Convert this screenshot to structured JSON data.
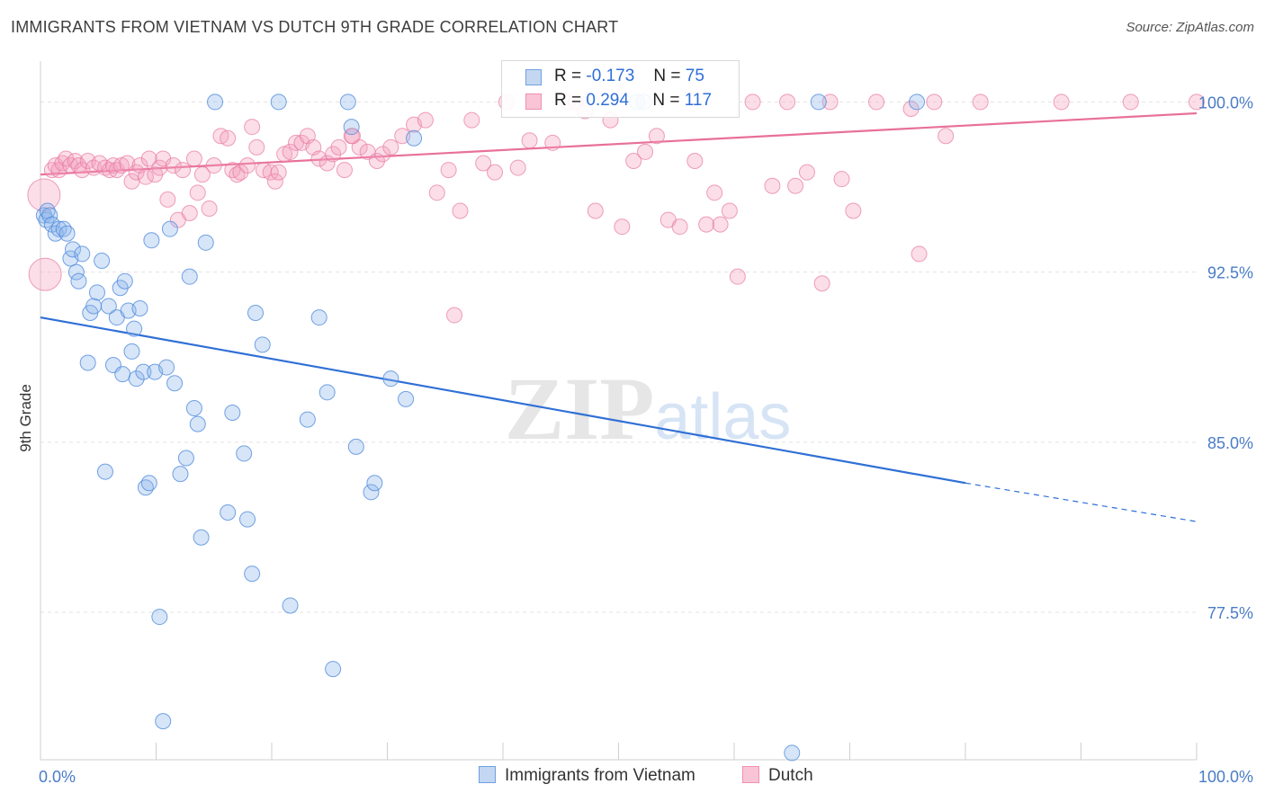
{
  "title": "IMMIGRANTS FROM VIETNAM VS DUTCH 9TH GRADE CORRELATION CHART",
  "source": "Source: ZipAtlas.com",
  "watermark": "ZIPatlas",
  "legend_stats": {
    "series1": {
      "r_label": "R =",
      "r_value": "-0.173",
      "n_label": "N =",
      "n_value": "75"
    },
    "series2": {
      "r_label": "R =",
      "r_value": "0.294",
      "n_label": "N =",
      "n_value": "117"
    }
  },
  "legend_bottom": {
    "series1": "Immigrants from Vietnam",
    "series2": "Dutch"
  },
  "chart_data": {
    "type": "scatter",
    "title": "IMMIGRANTS FROM VIETNAM VS DUTCH 9TH GRADE CORRELATION CHART",
    "xlabel": "",
    "ylabel": "9th Grade",
    "xlim": [
      0,
      100
    ],
    "ylim": [
      71.0,
      101.8
    ],
    "x_tick_labels": [
      "0.0%",
      "100.0%"
    ],
    "y_ticks": [
      100.0,
      92.5,
      85.0,
      77.5
    ],
    "y_tick_labels": [
      "100.0%",
      "92.5%",
      "85.0%",
      "77.5%"
    ],
    "grid": true,
    "legend_position": "top-center",
    "colors": {
      "series1": "#6fa0e0",
      "series2": "#f08fb0",
      "line1": "#2f6fd6",
      "line2": "#e8709a",
      "grid": "#e3e3e3"
    },
    "series": [
      {
        "name": "Immigrants from Vietnam",
        "trend": {
          "x0": 0,
          "y0": 90.5,
          "x1": 80,
          "y1": 83.2,
          "dashed_to_x": 100,
          "dashed_to_y": 81.5
        },
        "points": [
          [
            0.3,
            95.0
          ],
          [
            0.5,
            94.8
          ],
          [
            0.6,
            95.2
          ],
          [
            0.8,
            95.0
          ],
          [
            1.0,
            94.6
          ],
          [
            1.3,
            94.2
          ],
          [
            1.6,
            94.4
          ],
          [
            2.0,
            94.4
          ],
          [
            2.3,
            94.2
          ],
          [
            2.6,
            93.1
          ],
          [
            2.8,
            93.5
          ],
          [
            3.1,
            92.5
          ],
          [
            3.3,
            92.1
          ],
          [
            3.6,
            93.3
          ],
          [
            4.1,
            88.5
          ],
          [
            4.3,
            90.7
          ],
          [
            4.6,
            91.0
          ],
          [
            4.9,
            91.6
          ],
          [
            5.3,
            93.0
          ],
          [
            5.6,
            83.7
          ],
          [
            5.9,
            91.0
          ],
          [
            6.3,
            88.4
          ],
          [
            6.6,
            90.5
          ],
          [
            6.9,
            91.8
          ],
          [
            7.1,
            88.0
          ],
          [
            7.3,
            92.1
          ],
          [
            7.6,
            90.8
          ],
          [
            7.9,
            89.0
          ],
          [
            8.1,
            90.0
          ],
          [
            8.3,
            87.8
          ],
          [
            8.6,
            90.9
          ],
          [
            8.9,
            88.1
          ],
          [
            9.1,
            83.0
          ],
          [
            9.4,
            83.2
          ],
          [
            9.6,
            93.9
          ],
          [
            9.9,
            88.1
          ],
          [
            10.3,
            77.3
          ],
          [
            10.6,
            72.7
          ],
          [
            10.9,
            88.3
          ],
          [
            11.2,
            94.4
          ],
          [
            11.6,
            87.6
          ],
          [
            12.1,
            83.6
          ],
          [
            12.6,
            84.3
          ],
          [
            12.9,
            92.3
          ],
          [
            13.3,
            86.5
          ],
          [
            13.6,
            85.8
          ],
          [
            13.9,
            80.8
          ],
          [
            14.3,
            93.8
          ],
          [
            15.1,
            100.0
          ],
          [
            16.2,
            81.9
          ],
          [
            16.6,
            86.3
          ],
          [
            17.6,
            84.5
          ],
          [
            17.9,
            81.6
          ],
          [
            18.3,
            79.2
          ],
          [
            18.6,
            90.7
          ],
          [
            19.2,
            89.3
          ],
          [
            20.6,
            100.0
          ],
          [
            21.6,
            77.8
          ],
          [
            23.1,
            86.0
          ],
          [
            24.1,
            90.5
          ],
          [
            24.8,
            87.2
          ],
          [
            25.3,
            75.0
          ],
          [
            26.6,
            100.0
          ],
          [
            26.9,
            98.9
          ],
          [
            27.3,
            84.8
          ],
          [
            28.6,
            82.8
          ],
          [
            28.9,
            83.2
          ],
          [
            30.3,
            87.8
          ],
          [
            31.6,
            86.9
          ],
          [
            32.3,
            98.4
          ],
          [
            51.6,
            100.0
          ],
          [
            52.2,
            100.0
          ],
          [
            65.0,
            71.3
          ],
          [
            67.3,
            100.0
          ],
          [
            75.8,
            100.0
          ]
        ]
      },
      {
        "name": "Dutch",
        "trend": {
          "x0": 0,
          "y0": 96.8,
          "x1": 100,
          "y1": 99.5
        },
        "points": [
          [
            0.3,
            95.9
          ],
          [
            0.4,
            92.4
          ],
          [
            1.0,
            97.0
          ],
          [
            1.3,
            97.2
          ],
          [
            1.6,
            97.0
          ],
          [
            1.9,
            97.3
          ],
          [
            2.2,
            97.5
          ],
          [
            2.6,
            97.2
          ],
          [
            3.0,
            97.4
          ],
          [
            3.3,
            97.2
          ],
          [
            3.6,
            97.0
          ],
          [
            4.1,
            97.4
          ],
          [
            4.6,
            97.1
          ],
          [
            5.1,
            97.3
          ],
          [
            5.6,
            97.1
          ],
          [
            6.0,
            97.0
          ],
          [
            6.3,
            97.2
          ],
          [
            6.6,
            97.0
          ],
          [
            7.0,
            97.2
          ],
          [
            7.5,
            97.3
          ],
          [
            7.9,
            96.5
          ],
          [
            8.3,
            96.9
          ],
          [
            8.6,
            97.2
          ],
          [
            9.1,
            96.7
          ],
          [
            9.4,
            97.5
          ],
          [
            9.9,
            96.8
          ],
          [
            10.3,
            97.1
          ],
          [
            10.6,
            97.5
          ],
          [
            11.0,
            95.7
          ],
          [
            11.5,
            97.2
          ],
          [
            11.9,
            94.8
          ],
          [
            12.3,
            97.0
          ],
          [
            12.9,
            95.1
          ],
          [
            13.3,
            97.5
          ],
          [
            13.6,
            96.0
          ],
          [
            14.0,
            96.8
          ],
          [
            14.6,
            95.3
          ],
          [
            15.0,
            97.2
          ],
          [
            15.6,
            98.5
          ],
          [
            16.2,
            98.4
          ],
          [
            16.6,
            97.0
          ],
          [
            17.0,
            96.8
          ],
          [
            17.3,
            96.9
          ],
          [
            17.9,
            97.2
          ],
          [
            18.3,
            98.9
          ],
          [
            18.7,
            98.0
          ],
          [
            19.3,
            97.0
          ],
          [
            19.9,
            96.9
          ],
          [
            20.3,
            96.5
          ],
          [
            20.6,
            96.9
          ],
          [
            21.1,
            97.7
          ],
          [
            21.6,
            97.8
          ],
          [
            22.1,
            98.2
          ],
          [
            22.6,
            98.2
          ],
          [
            23.1,
            98.5
          ],
          [
            23.6,
            98.0
          ],
          [
            24.1,
            97.5
          ],
          [
            24.8,
            97.3
          ],
          [
            25.3,
            97.7
          ],
          [
            25.8,
            98.0
          ],
          [
            26.3,
            97.0
          ],
          [
            26.9,
            98.5
          ],
          [
            27.6,
            98.0
          ],
          [
            28.3,
            97.8
          ],
          [
            29.1,
            97.4
          ],
          [
            29.6,
            97.7
          ],
          [
            30.3,
            98.0
          ],
          [
            31.3,
            98.5
          ],
          [
            32.3,
            99.0
          ],
          [
            33.3,
            99.2
          ],
          [
            34.3,
            96.0
          ],
          [
            35.3,
            97.0
          ],
          [
            36.3,
            95.2
          ],
          [
            37.3,
            99.2
          ],
          [
            38.3,
            97.3
          ],
          [
            39.3,
            96.9
          ],
          [
            40.3,
            100.0
          ],
          [
            41.3,
            97.1
          ],
          [
            42.3,
            98.3
          ],
          [
            44.3,
            98.2
          ],
          [
            45.6,
            100.0
          ],
          [
            46.3,
            100.0
          ],
          [
            47.1,
            99.6
          ],
          [
            48.0,
            95.2
          ],
          [
            49.3,
            99.2
          ],
          [
            50.3,
            94.5
          ],
          [
            51.3,
            97.4
          ],
          [
            52.3,
            97.8
          ],
          [
            53.3,
            98.5
          ],
          [
            54.3,
            94.8
          ],
          [
            55.3,
            94.5
          ],
          [
            56.6,
            97.4
          ],
          [
            57.6,
            94.6
          ],
          [
            58.3,
            96.0
          ],
          [
            58.8,
            94.6
          ],
          [
            59.6,
            95.2
          ],
          [
            60.3,
            92.3
          ],
          [
            61.6,
            100.0
          ],
          [
            63.3,
            96.3
          ],
          [
            64.6,
            100.0
          ],
          [
            65.3,
            96.3
          ],
          [
            66.3,
            96.9
          ],
          [
            67.6,
            92.0
          ],
          [
            68.3,
            100.0
          ],
          [
            69.3,
            96.6
          ],
          [
            70.3,
            95.2
          ],
          [
            72.3,
            100.0
          ],
          [
            75.3,
            99.7
          ],
          [
            76.0,
            93.3
          ],
          [
            77.3,
            100.0
          ],
          [
            78.3,
            98.5
          ],
          [
            81.3,
            100.0
          ],
          [
            88.3,
            100.0
          ],
          [
            94.3,
            100.0
          ],
          [
            100.0,
            100.0
          ],
          [
            27.0,
            98.5
          ],
          [
            35.8,
            90.6
          ]
        ]
      }
    ]
  }
}
